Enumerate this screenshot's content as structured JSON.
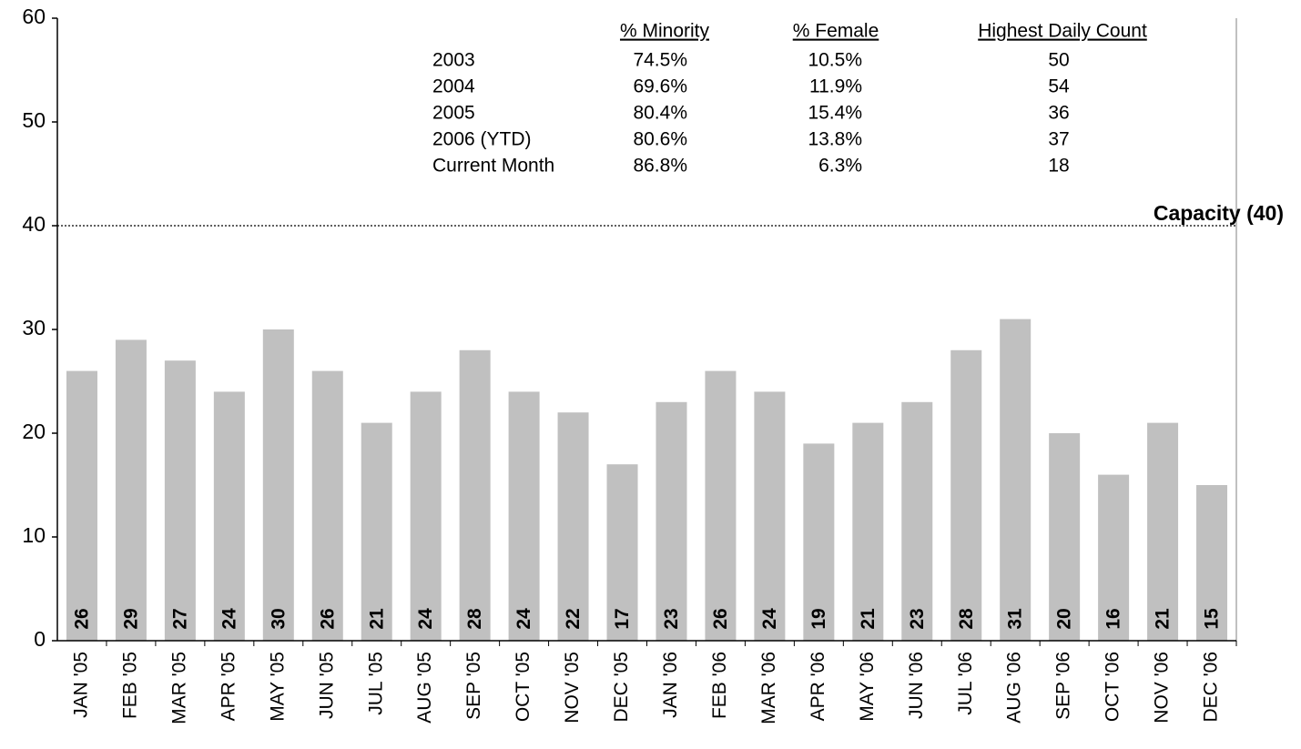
{
  "chart_data": {
    "type": "bar",
    "categories": [
      "JAN '05",
      "FEB '05",
      "MAR '05",
      "APR '05",
      "MAY '05",
      "JUN '05",
      "JUL '05",
      "AUG '05",
      "SEP '05",
      "OCT '05",
      "NOV '05",
      "DEC '05",
      "JAN '06",
      "FEB '06",
      "MAR '06",
      "APR '06",
      "MAY '06",
      "JUN '06",
      "JUL '06",
      "AUG '06",
      "SEP '06",
      "OCT '06",
      "NOV '06",
      "DEC '06"
    ],
    "values": [
      26,
      29,
      27,
      24,
      30,
      26,
      21,
      24,
      28,
      24,
      22,
      17,
      23,
      26,
      24,
      19,
      21,
      23,
      28,
      31,
      20,
      16,
      21,
      15
    ],
    "color": "#c0c0c0",
    "ylim": [
      0,
      60
    ],
    "yticks": [
      0,
      10,
      20,
      30,
      40,
      50,
      60
    ],
    "capacity": {
      "value": 40,
      "label": "Capacity (40)"
    },
    "table": {
      "columns": [
        "% Minority",
        "% Female",
        "Highest Daily Count"
      ],
      "rows": [
        [
          "2003",
          "74.5%",
          "10.5%",
          "50"
        ],
        [
          "2004",
          "69.6%",
          "11.9%",
          "54"
        ],
        [
          "2005",
          "80.4%",
          "15.4%",
          "36"
        ],
        [
          "2006 (YTD)",
          "80.6%",
          "13.8%",
          "37"
        ],
        [
          "Current Month",
          "86.8%",
          "6.3%",
          "18"
        ]
      ]
    }
  }
}
